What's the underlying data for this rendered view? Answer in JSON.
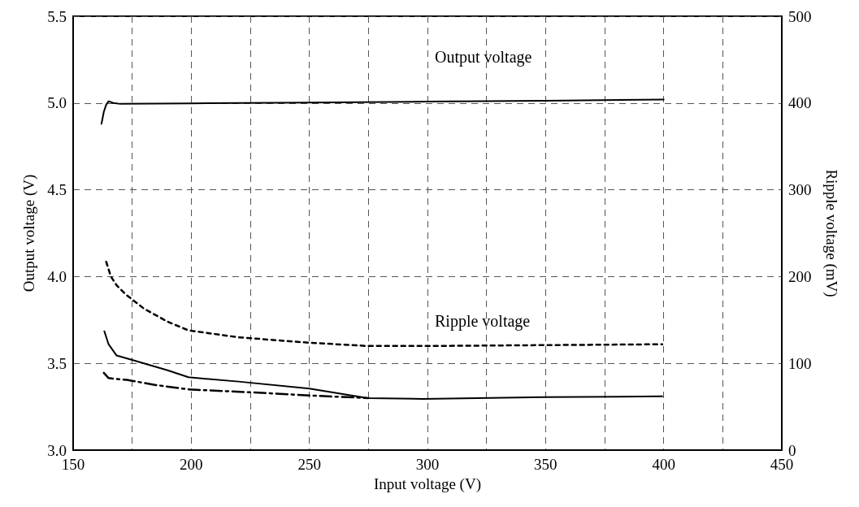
{
  "chart_data": {
    "type": "line",
    "xlabel": "Input voltage (V)",
    "ylabel": "Output voltage (V)",
    "y2label": "Ripple voltage (mV)",
    "xlim": [
      150,
      450
    ],
    "xticks": [
      150,
      {
        "value": 175,
        "label": null
      },
      200,
      {
        "value": 225,
        "label": null
      },
      250,
      {
        "value": 275,
        "label": null
      },
      300,
      {
        "value": 325,
        "label": null
      },
      350,
      {
        "value": 375,
        "label": null
      },
      400,
      {
        "value": 425,
        "label": null
      },
      450
    ],
    "ylim": [
      3.0,
      5.5
    ],
    "yticks": [
      {
        "value": 3.0,
        "label": "3.0"
      },
      3.5,
      {
        "value": 4.0,
        "label": "4.0"
      },
      4.5,
      {
        "value": 5.0,
        "label": "5.0"
      },
      5.5
    ],
    "y2lim": [
      0,
      500
    ],
    "y2ticks": [
      0,
      100,
      200,
      300,
      400,
      500
    ],
    "grid": true,
    "marker": "none",
    "annotations": [
      "Output voltage",
      "Ripple voltage"
    ],
    "series": [
      {
        "color": "#000000",
        "line_style": "solid",
        "x": [
          162,
          163,
          164,
          165,
          167,
          170,
          200,
          250,
          300,
          350,
          400
        ],
        "values": [
          4.88,
          4.95,
          4.99,
          5.01,
          5.0,
          4.995,
          4.998,
          5.003,
          5.008,
          5.013,
          5.02
        ]
      },
      {
        "color": "#000000",
        "line_style": "dotted",
        "axis": "y2",
        "x": [
          164,
          166,
          168.4,
          172,
          180,
          190,
          198.8,
          220,
          248.7,
          274.7,
          300,
          350,
          399.4
        ],
        "values": [
          217,
          200,
          190,
          180,
          163,
          148,
          138,
          130,
          124,
          120,
          120,
          121,
          122
        ]
      },
      {
        "color": "#000000",
        "line_style": "solid",
        "axis": "y2",
        "x": [
          163.2,
          165,
          168.4,
          175,
          190,
          198.8,
          220,
          250,
          274.7,
          298,
          350,
          399.4
        ],
        "values": [
          137,
          122,
          109,
          104,
          92,
          84,
          79,
          71,
          60,
          59,
          61,
          62
        ]
      },
      {
        "color": "#000000",
        "line_style": "dashed",
        "axis": "y2",
        "x": [
          163,
          165,
          168,
          172.7,
          185,
          198.8,
          230,
          250,
          275
        ],
        "values": [
          89,
          83,
          82,
          81,
          75,
          70,
          66,
          63,
          60
        ]
      }
    ]
  }
}
